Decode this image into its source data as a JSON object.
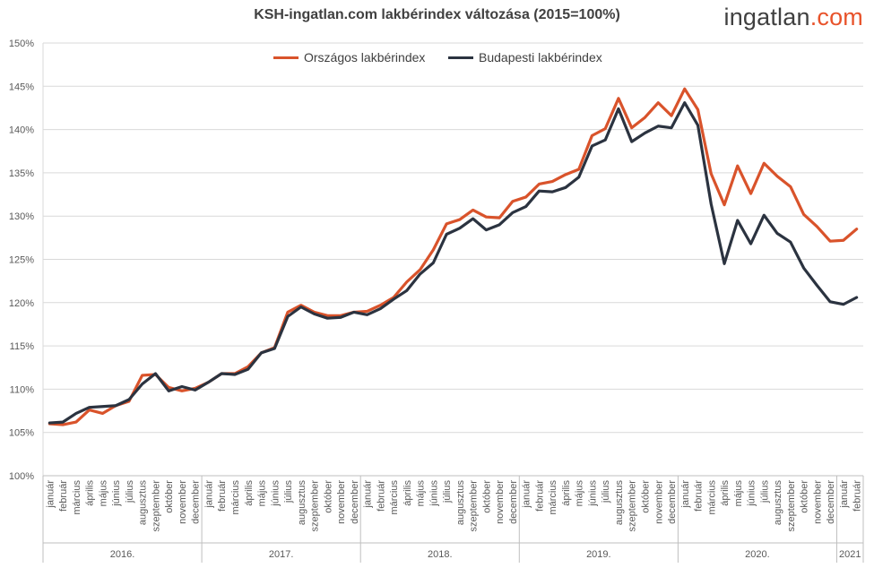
{
  "chart_data": {
    "type": "line",
    "title": "KSH-ingatlan.com lakbérindex változása (2015=100%)",
    "logo": {
      "part1": "ingatlan",
      "part2": ".com"
    },
    "y_ticks": [
      "100%",
      "105%",
      "110%",
      "115%",
      "120%",
      "125%",
      "130%",
      "135%",
      "140%",
      "145%",
      "150%"
    ],
    "ylim": [
      100,
      150
    ],
    "grid": true,
    "legend_position": "top",
    "years": [
      {
        "label": "2016.",
        "months": 12
      },
      {
        "label": "2017.",
        "months": 12
      },
      {
        "label": "2018.",
        "months": 12
      },
      {
        "label": "2019.",
        "months": 12
      },
      {
        "label": "2020.",
        "months": 12
      },
      {
        "label": "2021",
        "months": 2
      }
    ],
    "month_labels": [
      "január",
      "február",
      "március",
      "április",
      "május",
      "június",
      "július",
      "augusztus",
      "szeptember",
      "október",
      "november",
      "december"
    ],
    "series": [
      {
        "name": "Országos lakbérindex",
        "color": "#d9532b",
        "values": [
          106.0,
          105.9,
          106.2,
          107.6,
          107.2,
          108.1,
          108.6,
          111.6,
          111.7,
          110.2,
          109.8,
          110.1,
          110.8,
          111.8,
          111.8,
          112.6,
          114.2,
          114.8,
          118.9,
          119.7,
          118.9,
          118.5,
          118.5,
          118.9,
          119.0,
          119.7,
          120.6,
          122.4,
          123.8,
          126.1,
          129.1,
          129.6,
          130.7,
          129.9,
          129.8,
          131.7,
          132.2,
          133.7,
          134.0,
          134.8,
          135.4,
          139.3,
          140.1,
          143.6,
          140.2,
          141.4,
          143.1,
          141.6,
          144.7,
          142.3,
          134.9,
          131.3,
          135.8,
          132.6,
          136.1,
          134.6,
          133.4,
          130.2,
          128.8,
          127.1,
          127.2,
          128.5
        ]
      },
      {
        "name": "Budapesti lakbérindex",
        "color": "#2b3340",
        "values": [
          106.1,
          106.2,
          107.2,
          107.9,
          108.0,
          108.1,
          108.8,
          110.6,
          111.8,
          109.8,
          110.3,
          109.9,
          110.8,
          111.8,
          111.7,
          112.3,
          114.2,
          114.7,
          118.4,
          119.5,
          118.7,
          118.2,
          118.3,
          118.9,
          118.6,
          119.3,
          120.4,
          121.4,
          123.3,
          124.6,
          127.9,
          128.6,
          129.7,
          128.4,
          129.0,
          130.4,
          131.1,
          132.9,
          132.8,
          133.3,
          134.5,
          138.1,
          138.8,
          142.4,
          138.6,
          139.6,
          140.4,
          140.2,
          143.1,
          140.5,
          131.4,
          124.5,
          129.5,
          126.8,
          130.1,
          128.0,
          127.0,
          124.0,
          122.0,
          120.1,
          119.8,
          120.6
        ]
      }
    ]
  }
}
